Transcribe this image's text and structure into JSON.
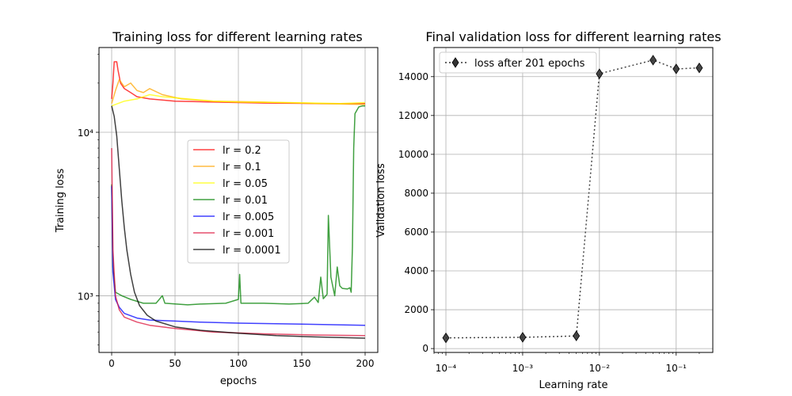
{
  "chart_data": [
    {
      "type": "line",
      "title": "Training loss for different learning rates",
      "xlabel": "epochs",
      "ylabel": "Training loss",
      "yscale": "log",
      "xlim": [
        -10,
        210
      ],
      "ylim": [
        450,
        33000
      ],
      "grid": true,
      "legend_position": "center",
      "x_ticks": [
        0,
        50,
        100,
        150,
        200
      ],
      "y_ticks": [
        {
          "value": 1000,
          "label": "10³"
        },
        {
          "value": 10000,
          "label": "10⁴"
        }
      ],
      "series": [
        {
          "name": "lr = 0.2",
          "color": "#ff0000",
          "points": [
            [
              0,
              16000
            ],
            [
              1,
              20000
            ],
            [
              2,
              27000
            ],
            [
              4,
              27000
            ],
            [
              5,
              24000
            ],
            [
              7,
              20000
            ],
            [
              10,
              18500
            ],
            [
              15,
              17500
            ],
            [
              20,
              16500
            ],
            [
              30,
              16000
            ],
            [
              50,
              15500
            ],
            [
              80,
              15300
            ],
            [
              120,
              15100
            ],
            [
              160,
              15000
            ],
            [
              200,
              15000
            ]
          ]
        },
        {
          "name": "lr = 0.1",
          "color": "#ffa500",
          "points": [
            [
              0,
              15000
            ],
            [
              3,
              18000
            ],
            [
              6,
              21000
            ],
            [
              10,
              19000
            ],
            [
              15,
              20000
            ],
            [
              20,
              18000
            ],
            [
              25,
              17500
            ],
            [
              30,
              18500
            ],
            [
              40,
              17000
            ],
            [
              55,
              16000
            ],
            [
              80,
              15500
            ],
            [
              120,
              15300
            ],
            [
              160,
              15000
            ],
            [
              200,
              14800
            ]
          ]
        },
        {
          "name": "lr = 0.05",
          "color": "#ffff00",
          "points": [
            [
              0,
              14500
            ],
            [
              10,
              15500
            ],
            [
              20,
              16000
            ],
            [
              30,
              17000
            ],
            [
              40,
              16500
            ],
            [
              60,
              16000
            ],
            [
              80,
              15500
            ],
            [
              100,
              15300
            ],
            [
              140,
              15200
            ],
            [
              180,
              15000
            ],
            [
              200,
              15200
            ]
          ]
        },
        {
          "name": "lr = 0.01",
          "color": "#008000",
          "points": [
            [
              0,
              4800
            ],
            [
              1,
              1500
            ],
            [
              3,
              1050
            ],
            [
              8,
              1000
            ],
            [
              15,
              950
            ],
            [
              25,
              900
            ],
            [
              35,
              900
            ],
            [
              40,
              1000
            ],
            [
              42,
              900
            ],
            [
              60,
              880
            ],
            [
              70,
              890
            ],
            [
              90,
              900
            ],
            [
              100,
              950
            ],
            [
              101,
              1350
            ],
            [
              102,
              900
            ],
            [
              120,
              900
            ],
            [
              140,
              890
            ],
            [
              155,
              900
            ],
            [
              160,
              980
            ],
            [
              163,
              910
            ],
            [
              165,
              1300
            ],
            [
              167,
              960
            ],
            [
              170,
              1020
            ],
            [
              171,
              3100
            ],
            [
              173,
              1300
            ],
            [
              176,
              1000
            ],
            [
              178,
              1500
            ],
            [
              180,
              1150
            ],
            [
              182,
              1110
            ],
            [
              186,
              1100
            ],
            [
              188,
              1120
            ],
            [
              189,
              1050
            ],
            [
              190,
              2000
            ],
            [
              191,
              8000
            ],
            [
              192,
              13000
            ],
            [
              195,
              14300
            ],
            [
              198,
              14500
            ],
            [
              200,
              14500
            ]
          ]
        },
        {
          "name": "lr = 0.005",
          "color": "#0000ff",
          "points": [
            [
              0,
              4700
            ],
            [
              1,
              1400
            ],
            [
              3,
              950
            ],
            [
              6,
              850
            ],
            [
              10,
              780
            ],
            [
              20,
              730
            ],
            [
              30,
              710
            ],
            [
              50,
              700
            ],
            [
              70,
              690
            ],
            [
              100,
              680
            ],
            [
              150,
              670
            ],
            [
              200,
              660
            ]
          ]
        },
        {
          "name": "lr = 0.001",
          "color": "#dc143c",
          "points": [
            [
              0,
              8000
            ],
            [
              1,
              1900
            ],
            [
              3,
              1000
            ],
            [
              6,
              820
            ],
            [
              10,
              740
            ],
            [
              20,
              690
            ],
            [
              30,
              660
            ],
            [
              50,
              630
            ],
            [
              80,
              600
            ],
            [
              120,
              585
            ],
            [
              160,
              575
            ],
            [
              200,
              570
            ]
          ]
        },
        {
          "name": "lr = 0.0001",
          "color": "#000000",
          "points": [
            [
              0,
              14500
            ],
            [
              2,
              12500
            ],
            [
              4,
              9500
            ],
            [
              6,
              6000
            ],
            [
              8,
              3800
            ],
            [
              10,
              2600
            ],
            [
              12,
              1900
            ],
            [
              15,
              1350
            ],
            [
              18,
              1050
            ],
            [
              22,
              870
            ],
            [
              28,
              760
            ],
            [
              35,
              700
            ],
            [
              50,
              645
            ],
            [
              70,
              615
            ],
            [
              100,
              590
            ],
            [
              130,
              570
            ],
            [
              160,
              560
            ],
            [
              200,
              550
            ]
          ]
        }
      ]
    },
    {
      "type": "line",
      "title": "Final validation loss for different learning rates",
      "xlabel": "Learning rate",
      "ylabel": "Validation loss",
      "xscale": "log",
      "xlim": [
        7e-05,
        0.3
      ],
      "ylim": [
        -200,
        15500
      ],
      "grid": true,
      "legend_position": "top-left",
      "x_ticks": [
        {
          "value": 0.0001,
          "label": "10⁻⁴"
        },
        {
          "value": 0.001,
          "label": "10⁻³"
        },
        {
          "value": 0.01,
          "label": "10⁻²"
        },
        {
          "value": 0.1,
          "label": "10⁻¹"
        }
      ],
      "y_ticks": [
        0,
        2000,
        4000,
        6000,
        8000,
        10000,
        12000,
        14000
      ],
      "series": [
        {
          "name": "loss after 201 epochs",
          "color": "#333333",
          "marker": "diamond",
          "linestyle": "dotted",
          "x": [
            0.0001,
            0.001,
            0.005,
            0.01,
            0.05,
            0.1,
            0.2
          ],
          "y": [
            550,
            580,
            650,
            14150,
            14850,
            14400,
            14450
          ]
        }
      ]
    }
  ]
}
